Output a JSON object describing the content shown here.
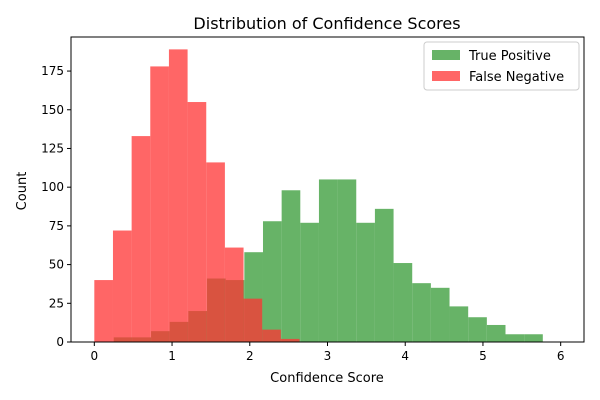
{
  "chart_data": {
    "type": "bar",
    "subtype": "overlapping-histogram",
    "title": "Distribution of Confidence Scores",
    "xlabel": "Confidence Score",
    "ylabel": "Count",
    "xlim": [
      -0.3,
      6.3
    ],
    "ylim": [
      0,
      197
    ],
    "xticks": [
      0,
      1,
      2,
      3,
      4,
      5,
      6
    ],
    "yticks": [
      0,
      25,
      50,
      75,
      100,
      125,
      150,
      175
    ],
    "grid": false,
    "legend": "top-right",
    "series": [
      {
        "name": "True Positive",
        "color": "#4ca64c",
        "opacity": 0.85,
        "bins": [
          [
            0.25,
            0.49
          ],
          [
            0.49,
            0.73
          ],
          [
            0.73,
            0.97
          ],
          [
            0.97,
            1.21
          ],
          [
            1.21,
            1.45
          ],
          [
            1.45,
            1.69
          ],
          [
            1.69,
            1.93
          ],
          [
            1.93,
            2.17
          ],
          [
            2.17,
            2.41
          ],
          [
            2.41,
            2.65
          ],
          [
            2.65,
            2.89
          ],
          [
            2.89,
            3.13
          ],
          [
            3.13,
            3.37
          ],
          [
            3.37,
            3.61
          ],
          [
            3.61,
            3.85
          ],
          [
            3.85,
            4.09
          ],
          [
            4.09,
            4.33
          ],
          [
            4.33,
            4.57
          ],
          [
            4.57,
            4.81
          ],
          [
            4.81,
            5.05
          ],
          [
            5.05,
            5.29
          ],
          [
            5.29,
            5.53
          ],
          [
            5.53,
            5.77
          ]
        ],
        "values": [
          3,
          3,
          7,
          13,
          20,
          41,
          40,
          58,
          78,
          98,
          77,
          105,
          105,
          77,
          86,
          51,
          38,
          35,
          23,
          16,
          11,
          5,
          5
        ]
      },
      {
        "name": "False Negative",
        "color": "#ff3333",
        "opacity": 0.75,
        "bins": [
          [
            0.0,
            0.24
          ],
          [
            0.24,
            0.48
          ],
          [
            0.48,
            0.72
          ],
          [
            0.72,
            0.96
          ],
          [
            0.96,
            1.2
          ],
          [
            1.2,
            1.44
          ],
          [
            1.44,
            1.68
          ],
          [
            1.68,
            1.92
          ],
          [
            1.92,
            2.16
          ],
          [
            2.16,
            2.4
          ],
          [
            2.4,
            2.64
          ]
        ],
        "values": [
          40,
          72,
          133,
          178,
          189,
          155,
          116,
          61,
          28,
          8,
          2
        ]
      }
    ]
  }
}
